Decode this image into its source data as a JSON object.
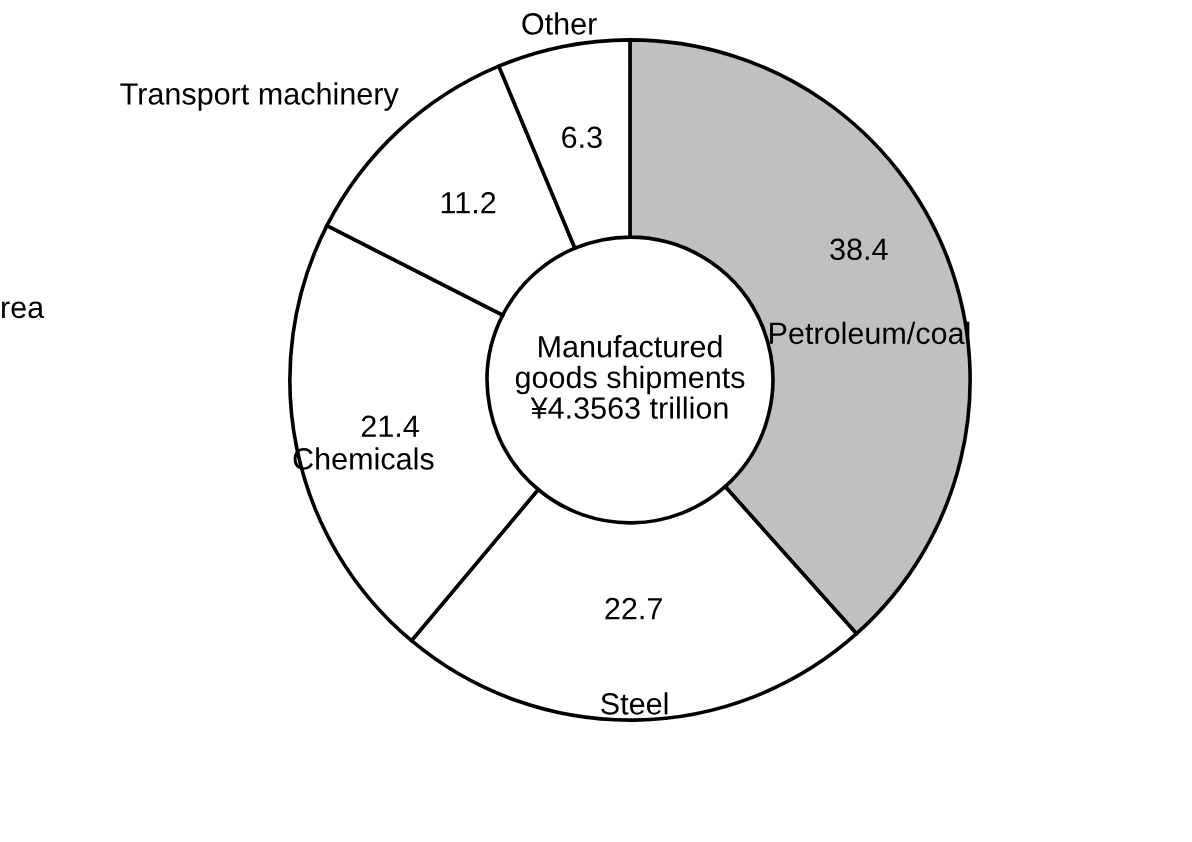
{
  "chart_data": {
    "type": "donut",
    "categories": [
      "Petroleum/coal",
      "Steel",
      "Chemicals",
      "Transport machinery",
      "Other"
    ],
    "values": [
      38.4,
      22.7,
      21.4,
      11.2,
      6.3
    ],
    "colors": [
      "#c0c0c0",
      "#ffffff",
      "#ffffff",
      "#ffffff",
      "#ffffff"
    ],
    "data_labels": true,
    "annotations": [
      "Manufactured\ngoods shipments\n¥4.3563 trillion",
      "rea"
    ]
  }
}
